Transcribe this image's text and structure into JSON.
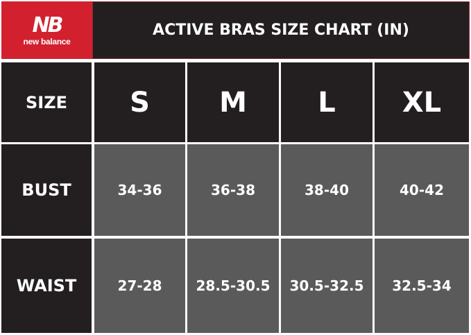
{
  "logo": {
    "mark": "NB",
    "brand": "new balance",
    "color": "#d2202f"
  },
  "title": "ACTIVE BRAS SIZE CHART (IN)",
  "table": {
    "header_label": "SIZE",
    "sizes": [
      "S",
      "M",
      "L",
      "XL"
    ],
    "rows": [
      {
        "label": "BUST",
        "values": [
          "34-36",
          "36-38",
          "38-40",
          "40-42"
        ]
      },
      {
        "label": "WAIST",
        "values": [
          "27-28",
          "28.5-30.5",
          "30.5-32.5",
          "32.5-34"
        ]
      }
    ]
  }
}
